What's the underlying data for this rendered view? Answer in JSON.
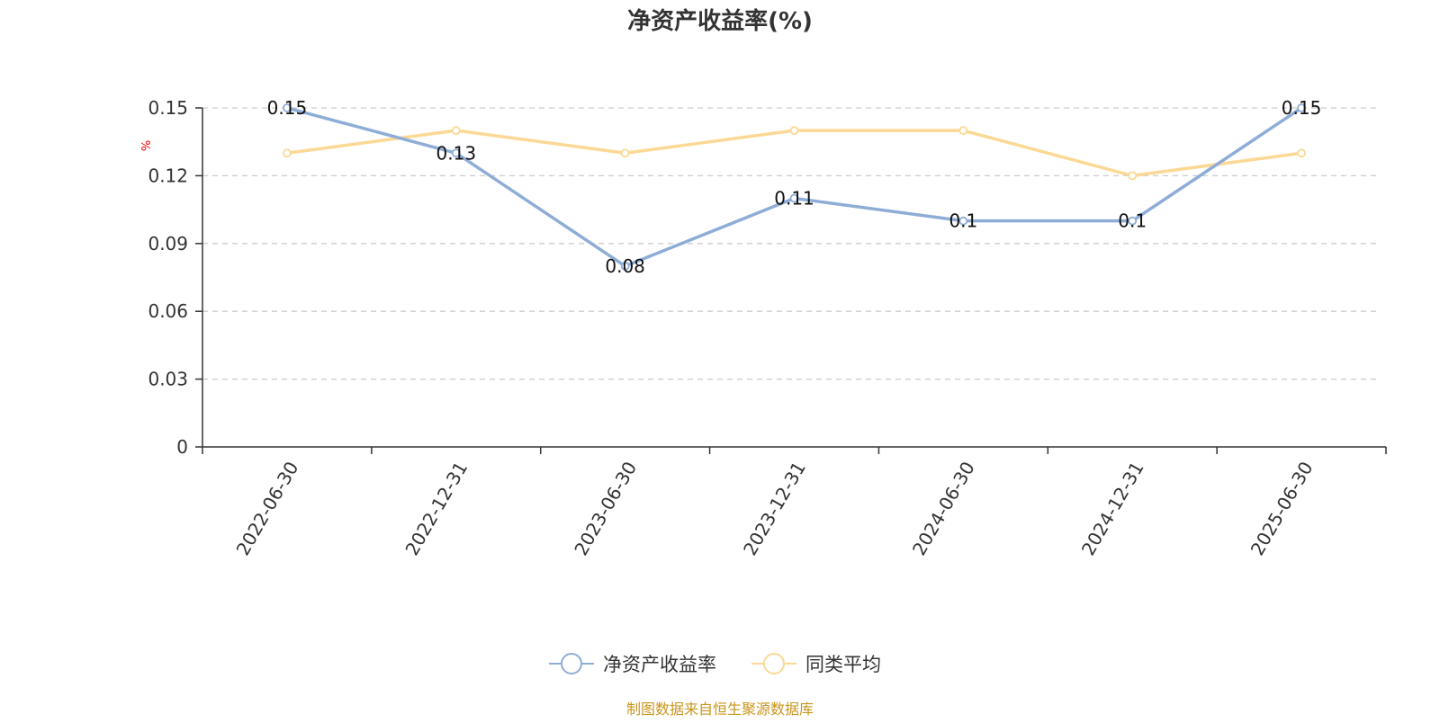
{
  "chart_data": {
    "type": "line",
    "title": "净资产收益率(%)",
    "ylabel": "%",
    "xlabel": "",
    "categories": [
      "2022-06-30",
      "2022-12-31",
      "2023-06-30",
      "2023-12-31",
      "2024-06-30",
      "2024-12-31",
      "2025-06-30"
    ],
    "ylim": [
      0,
      0.15
    ],
    "yticks": [
      "0",
      "0.03",
      "0.06",
      "0.09",
      "0.12",
      "0.15"
    ],
    "grid": true,
    "legend_position": "bottom",
    "series": [
      {
        "name": "净资产收益率",
        "values": [
          0.15,
          0.13,
          0.08,
          0.11,
          0.1,
          0.1,
          0.15
        ],
        "labels": [
          "0.15",
          "0.13",
          "0.08",
          "0.11",
          "0.1",
          "0.1",
          "0.15"
        ],
        "color": "#8eadd6"
      },
      {
        "name": "同类平均",
        "values": [
          0.13,
          0.14,
          0.13,
          0.14,
          0.14,
          0.12,
          0.13
        ],
        "color": "#fbd995"
      }
    ]
  },
  "source": "制图数据来自恒生聚源数据库",
  "colors": {
    "axis": "#333333",
    "grid": "#cccccc",
    "unit": "#ff0000",
    "source": "#c8961e"
  }
}
